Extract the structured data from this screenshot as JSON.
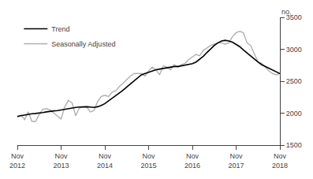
{
  "chart_data": {
    "type": "line",
    "ylabel": "no.",
    "categories": [
      "Nov\n2012",
      null,
      null,
      null,
      null,
      null,
      null,
      null,
      null,
      null,
      null,
      null,
      "Nov\n2013",
      null,
      null,
      null,
      null,
      null,
      null,
      null,
      null,
      null,
      null,
      null,
      "Nov\n2014",
      null,
      null,
      null,
      null,
      null,
      null,
      null,
      null,
      null,
      null,
      null,
      "Nov\n2015",
      null,
      null,
      null,
      null,
      null,
      null,
      null,
      null,
      null,
      null,
      null,
      "Nov\n2016",
      null,
      null,
      null,
      null,
      null,
      null,
      null,
      null,
      null,
      null,
      null,
      "Nov\n2017",
      null,
      null,
      null,
      null,
      null,
      null,
      null,
      null,
      null,
      null,
      null,
      "Nov\n2018"
    ],
    "series": [
      {
        "name": "Trend",
        "color": "#000000",
        "values": [
          1950,
          1960,
          1970,
          1985,
          1990,
          1995,
          2000,
          2010,
          2020,
          2030,
          2035,
          2040,
          2050,
          2060,
          2075,
          2085,
          2090,
          2095,
          2100,
          2100,
          2095,
          2090,
          2100,
          2120,
          2150,
          2190,
          2230,
          2270,
          2310,
          2360,
          2410,
          2460,
          2510,
          2560,
          2600,
          2620,
          2640,
          2660,
          2680,
          2690,
          2700,
          2710,
          2720,
          2730,
          2730,
          2740,
          2750,
          2760,
          2775,
          2800,
          2840,
          2890,
          2950,
          3010,
          3060,
          3100,
          3130,
          3140,
          3130,
          3110,
          3080,
          3040,
          2990,
          2940,
          2890,
          2840,
          2800,
          2760,
          2730,
          2700,
          2670,
          2650,
          2620
        ]
      },
      {
        "name": "Seasonally Adjusted",
        "color": "#b0b0b0",
        "values": [
          1930,
          1970,
          1900,
          2020,
          1870,
          1870,
          1980,
          2060,
          2070,
          2050,
          2000,
          1960,
          1910,
          2100,
          2200,
          2160,
          1960,
          2080,
          2100,
          2100,
          2020,
          2040,
          2180,
          2260,
          2280,
          2260,
          2330,
          2350,
          2420,
          2470,
          2530,
          2580,
          2620,
          2620,
          2620,
          2580,
          2660,
          2720,
          2680,
          2600,
          2740,
          2720,
          2680,
          2760,
          2720,
          2760,
          2780,
          2840,
          2880,
          2920,
          2900,
          2980,
          3020,
          3060,
          3080,
          3100,
          3100,
          3080,
          3100,
          3200,
          3260,
          3280,
          3260,
          3100,
          3060,
          2920,
          2800,
          2780,
          2720,
          2660,
          2620,
          2600,
          2620
        ]
      }
    ],
    "ylim": [
      1500,
      3500
    ],
    "yticks": [
      1500,
      2000,
      2500,
      3000,
      3500
    ],
    "grid": false,
    "legend": "upper left"
  }
}
